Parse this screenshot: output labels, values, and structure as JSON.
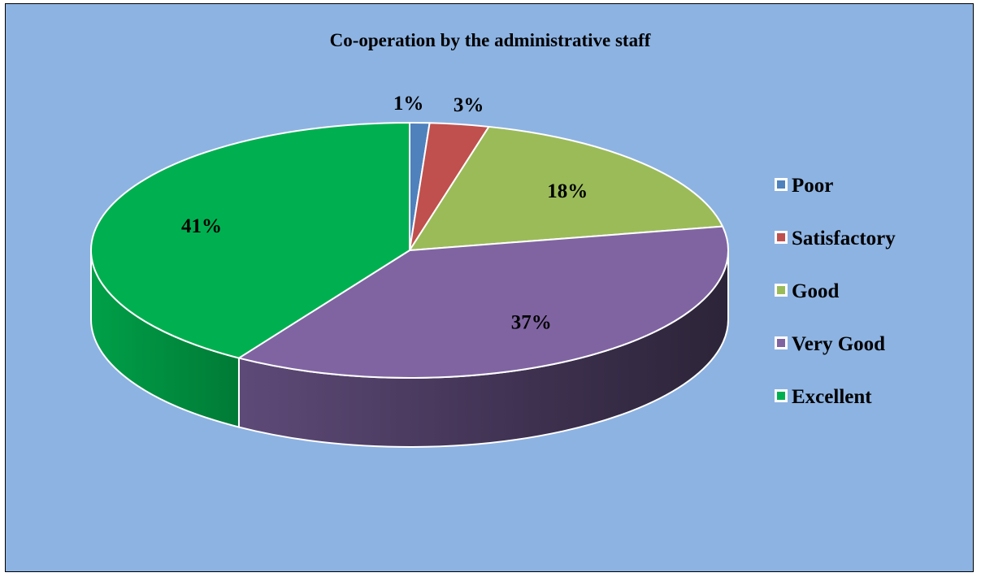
{
  "chart_data": {
    "type": "pie",
    "title": "Co-operation by the administrative staff",
    "categories": [
      "Poor",
      "Satisfactory",
      "Good",
      "Very Good",
      "Excellent"
    ],
    "values": [
      1,
      3,
      18,
      37,
      41
    ],
    "labels": [
      "1%",
      "3%",
      "18%",
      "37%",
      "41%"
    ],
    "colors": [
      "#4f81bd",
      "#c0504d",
      "#9bbb59",
      "#8064a2",
      "#00b050"
    ],
    "three_d": true,
    "legend_position": "right"
  },
  "background_color": "#8db3e2"
}
